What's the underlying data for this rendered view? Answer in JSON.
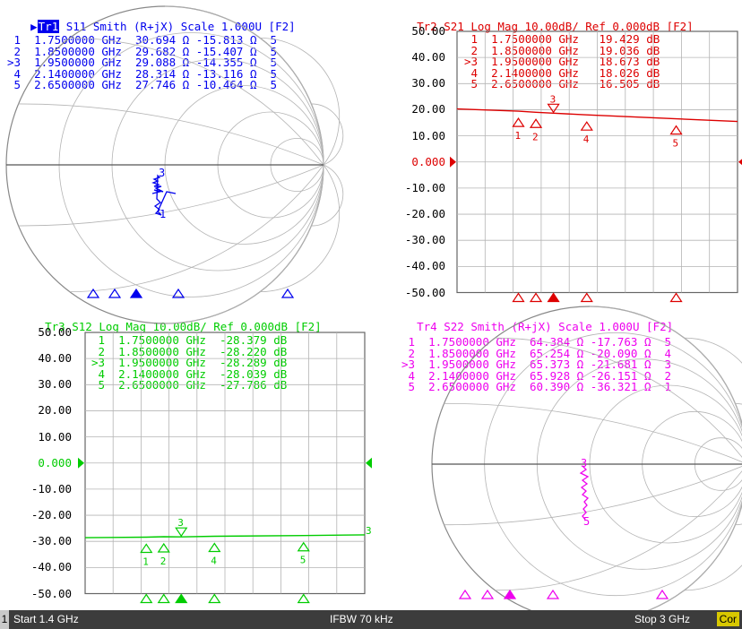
{
  "colors": {
    "tr1": "#0000ee",
    "tr2": "#dd0000",
    "tr3": "#00cc00",
    "tr4": "#ee00ee",
    "grid": "#b4b4b4",
    "status_bg": "#3c3c3c"
  },
  "traces": [
    {
      "id": "Tr1",
      "param": "S11",
      "format": "Smith (R+jX)",
      "scale": "Scale 1.000U",
      "tag": "[F2]",
      "markers": [
        {
          "label": "1",
          "freq": "1.7500000 GHz",
          "v1": "30.694 Ω",
          "v2": "-15.813 Ω",
          "n": "5"
        },
        {
          "label": "2",
          "freq": "1.8500000 GHz",
          "v1": "29.682 Ω",
          "v2": "-15.407 Ω",
          "n": "5"
        },
        {
          "label": ">3",
          "freq": "1.9500000 GHz",
          "v1": "29.088 Ω",
          "v2": "-14.355 Ω",
          "n": "5"
        },
        {
          "label": "4",
          "freq": "2.1400000 GHz",
          "v1": "28.314 Ω",
          "v2": "-13.116 Ω",
          "n": "5"
        },
        {
          "label": "5",
          "freq": "2.6500000 GHz",
          "v1": "27.746 Ω",
          "v2": "-10.464 Ω",
          "n": "5"
        }
      ]
    },
    {
      "id": "Tr2",
      "param": "S21",
      "format": "Log Mag",
      "scale": "10.00dB/ Ref 0.000dB",
      "tag": "[F2]",
      "markers": [
        {
          "label": "1",
          "freq": "1.7500000 GHz",
          "v1": "19.429",
          "v2": "dB"
        },
        {
          "label": "2",
          "freq": "1.8500000 GHz",
          "v1": "19.036",
          "v2": "dB"
        },
        {
          "label": ">3",
          "freq": "1.9500000 GHz",
          "v1": "18.673",
          "v2": "dB"
        },
        {
          "label": "4",
          "freq": "2.1400000 GHz",
          "v1": "18.026",
          "v2": "dB"
        },
        {
          "label": "5",
          "freq": "2.6500000 GHz",
          "v1": "16.505",
          "v2": "dB"
        }
      ]
    },
    {
      "id": "Tr3",
      "param": "S12",
      "format": "Log Mag",
      "scale": "10.00dB/ Ref 0.000dB",
      "tag": "[F2]",
      "markers": [
        {
          "label": "1",
          "freq": "1.7500000 GHz",
          "v1": "-28.379",
          "v2": "dB"
        },
        {
          "label": "2",
          "freq": "1.8500000 GHz",
          "v1": "-28.220",
          "v2": "dB"
        },
        {
          "label": ">3",
          "freq": "1.9500000 GHz",
          "v1": "-28.289",
          "v2": "dB"
        },
        {
          "label": "4",
          "freq": "2.1400000 GHz",
          "v1": "-28.039",
          "v2": "dB"
        },
        {
          "label": "5",
          "freq": "2.6500000 GHz",
          "v1": "-27.786",
          "v2": "dB"
        }
      ]
    },
    {
      "id": "Tr4",
      "param": "S22",
      "format": "Smith (R+jX)",
      "scale": "Scale 1.000U",
      "tag": "[F2]",
      "markers": [
        {
          "label": "1",
          "freq": "1.7500000 GHz",
          "v1": "64.384 Ω",
          "v2": "-17.763 Ω",
          "n": "5"
        },
        {
          "label": "2",
          "freq": "1.8500000 GHz",
          "v1": "65.254 Ω",
          "v2": "-20.090 Ω",
          "n": "4"
        },
        {
          "label": ">3",
          "freq": "1.9500000 GHz",
          "v1": "65.373 Ω",
          "v2": "-21.681 Ω",
          "n": "3"
        },
        {
          "label": "4",
          "freq": "2.1400000 GHz",
          "v1": "65.928 Ω",
          "v2": "-26.151 Ω",
          "n": "2"
        },
        {
          "label": "5",
          "freq": "2.6500000 GHz",
          "v1": "60.390 Ω",
          "v2": "-36.321 Ω",
          "n": "1"
        }
      ]
    }
  ],
  "y_axis_labels": [
    "50.00",
    "40.00",
    "30.00",
    "20.00",
    "10.00",
    "0.000",
    "-10.00",
    "-20.00",
    "-30.00",
    "-40.00",
    "-50.00"
  ],
  "status": {
    "channel": "1",
    "start": "Start 1.4 GHz",
    "ifbw": "IFBW 70 kHz",
    "stop": "Stop 3 GHz",
    "cor": "Cor"
  },
  "chart_data": [
    {
      "type": "line",
      "title": "Tr2 S21 Log Mag 10.00dB/ Ref 0.000dB [F2]",
      "x_unit": "GHz",
      "xlim": [
        1.4,
        3.0
      ],
      "ylim": [
        -50,
        50
      ],
      "ylabel": "dB",
      "series": [
        {
          "name": "S21",
          "x": [
            1.4,
            1.75,
            1.85,
            1.95,
            2.14,
            2.65,
            3.0
          ],
          "values": [
            20.3,
            19.429,
            19.036,
            18.673,
            18.026,
            16.505,
            15.5
          ]
        }
      ]
    },
    {
      "type": "line",
      "title": "Tr3 S12 Log Mag 10.00dB/ Ref 0.000dB [F2]",
      "x_unit": "GHz",
      "xlim": [
        1.4,
        3.0
      ],
      "ylim": [
        -50,
        50
      ],
      "ylabel": "dB",
      "series": [
        {
          "name": "S12",
          "x": [
            1.4,
            1.75,
            1.85,
            1.95,
            2.14,
            2.65,
            3.0
          ],
          "values": [
            -28.6,
            -28.379,
            -28.22,
            -28.289,
            -28.039,
            -27.786,
            -27.5
          ]
        }
      ]
    }
  ]
}
